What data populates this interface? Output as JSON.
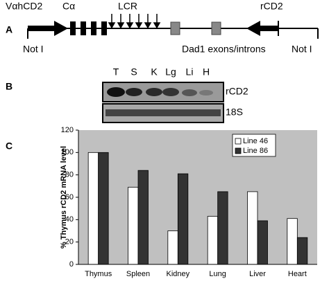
{
  "panel_a": {
    "label": "A",
    "construct_labels": [
      "VαhCD2",
      "Cα",
      "LCR",
      "rCD2"
    ],
    "site_left": "Not I",
    "exons": "Dad1 exons/introns",
    "site_right": "Not I"
  },
  "panel_b": {
    "label": "B",
    "lanes": [
      "T",
      "S",
      "K",
      "Lg",
      "Li",
      "H"
    ],
    "probe_top": "rCD2",
    "probe_bottom": "18S"
  },
  "panel_c_label": "C",
  "chart_data": {
    "type": "bar",
    "y_label": "% Thymus rCD2 mRNA level",
    "categories": [
      "Thymus",
      "Spleen",
      "Kidney",
      "Lung",
      "Liver",
      "Heart"
    ],
    "series": [
      {
        "name": "Line 46",
        "color": "#ffffff",
        "values": [
          100,
          69,
          30,
          43,
          65,
          41
        ]
      },
      {
        "name": "Line 86",
        "color": "#333333",
        "values": [
          100,
          84,
          81,
          65,
          39,
          24
        ]
      }
    ],
    "ylim": [
      0,
      120
    ],
    "yticks": [
      0,
      20,
      40,
      60,
      80,
      100,
      120
    ],
    "legend": "upper right",
    "background": "#c0c0c0"
  }
}
